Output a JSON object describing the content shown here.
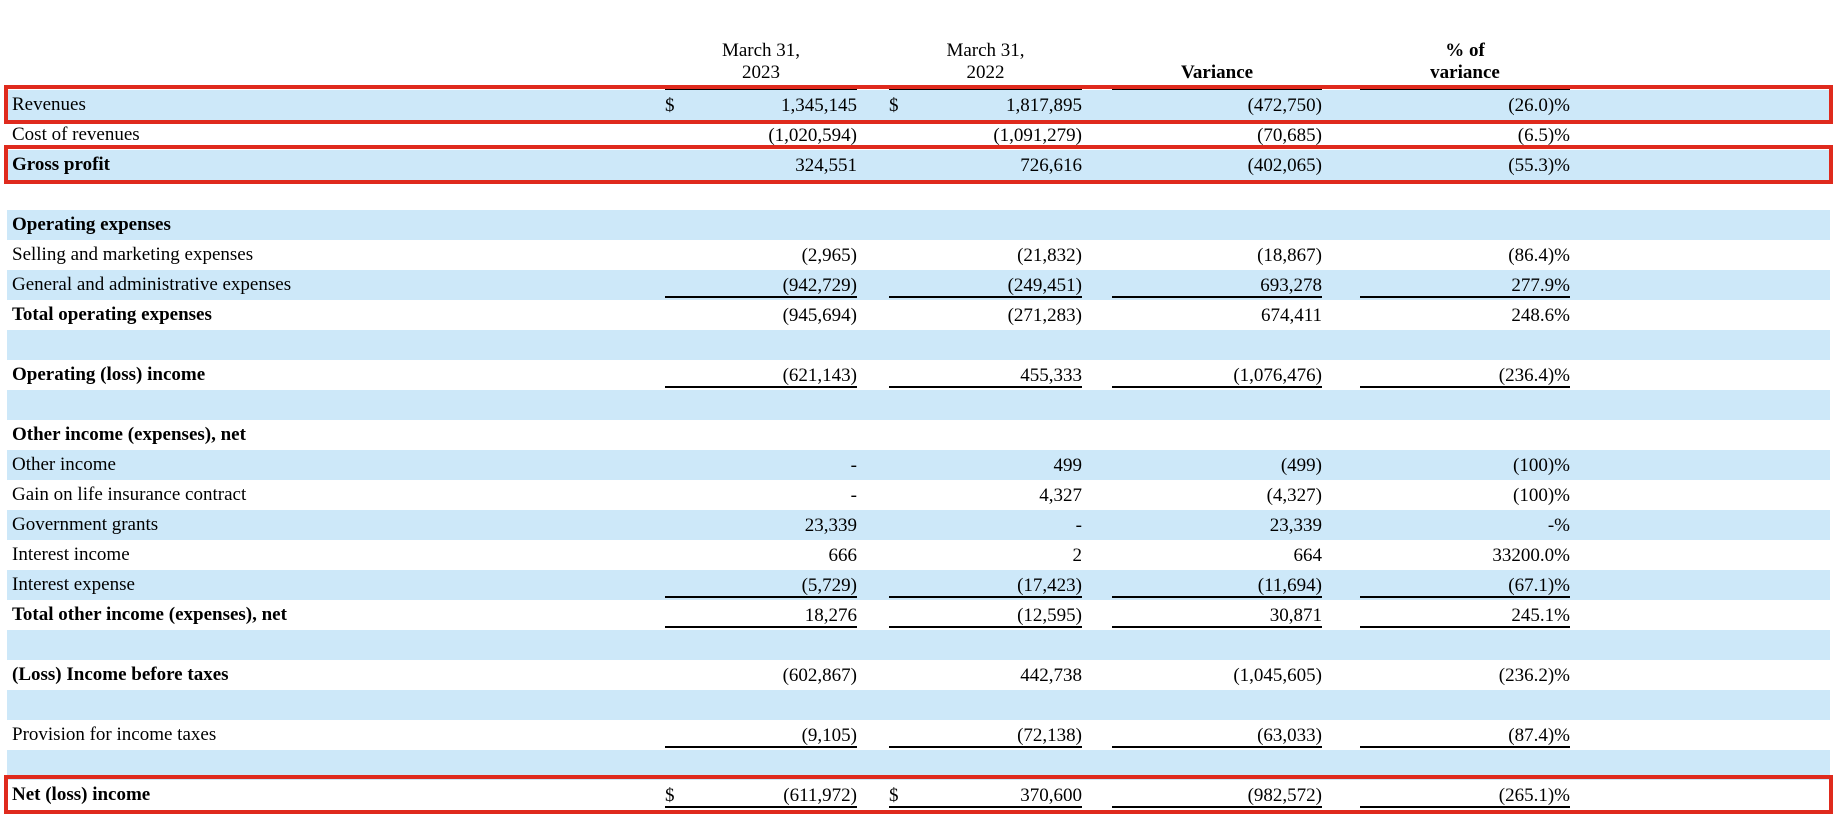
{
  "document": {
    "type": "comparative income statement",
    "periods": [
      "March 31, 2023",
      "March 31, 2022"
    ]
  },
  "colors": {
    "row_highlight_blue": "#cde8f9",
    "annotation_box_red": "#df2a1d",
    "rule_black": "#000000"
  },
  "header": {
    "cols": [
      {
        "line1": "March 31,",
        "line2": "2023"
      },
      {
        "line1": "March 31,",
        "line2": "2022"
      },
      {
        "line1": "Variance",
        "line2": ""
      },
      {
        "line1": "% of",
        "line2": "variance"
      }
    ]
  },
  "table": {
    "rows": [
      {
        "label": "Revenues",
        "bg": "blue",
        "bold": false,
        "highlight": true,
        "underline": "none",
        "d1": "$",
        "v1": "1,345,145",
        "d2": "$",
        "v2": "1,817,895",
        "variance": "(472,750)",
        "pct": "(26.0)%"
      },
      {
        "label": "Cost of revenues",
        "bg": "white",
        "bold": false,
        "highlight": false,
        "underline": "single",
        "d1": "",
        "v1": "(1,020,594)",
        "d2": "",
        "v2": "(1,091,279)",
        "variance": "(70,685)",
        "pct": "(6.5)%"
      },
      {
        "label": "Gross profit",
        "bg": "blue",
        "bold": true,
        "highlight": true,
        "underline": "none",
        "d1": "",
        "v1": "324,551",
        "d2": "",
        "v2": "726,616",
        "variance": "(402,065)",
        "pct": "(55.3)%"
      },
      {
        "spacer": true,
        "bg": "white"
      },
      {
        "label": "Operating expenses",
        "bg": "blue",
        "bold": true,
        "highlight": false,
        "underline": "none",
        "d1": "",
        "v1": "",
        "d2": "",
        "v2": "",
        "variance": "",
        "pct": ""
      },
      {
        "label": "Selling and marketing expenses",
        "bg": "white",
        "bold": false,
        "highlight": false,
        "underline": "none",
        "d1": "",
        "v1": "(2,965)",
        "d2": "",
        "v2": "(21,832)",
        "variance": "(18,867)",
        "pct": "(86.4)%"
      },
      {
        "label": "General and administrative expenses",
        "bg": "blue",
        "bold": false,
        "highlight": false,
        "underline": "single",
        "d1": "",
        "v1": "(942,729)",
        "d2": "",
        "v2": "(249,451)",
        "variance": "693,278",
        "pct": "277.9%"
      },
      {
        "label": "Total operating expenses",
        "bg": "white",
        "bold": true,
        "highlight": false,
        "underline": "none",
        "d1": "",
        "v1": "(945,694)",
        "d2": "",
        "v2": "(271,283)",
        "variance": "674,411",
        "pct": "248.6%"
      },
      {
        "spacer": true,
        "bg": "blue"
      },
      {
        "label": "Operating (loss) income",
        "bg": "white",
        "bold": true,
        "highlight": false,
        "underline": "single",
        "d1": "",
        "v1": "(621,143)",
        "d2": "",
        "v2": "455,333",
        "variance": "(1,076,476)",
        "pct": "(236.4)%"
      },
      {
        "spacer": true,
        "bg": "blue"
      },
      {
        "label": "Other income (expenses), net",
        "bg": "white",
        "bold": true,
        "highlight": false,
        "underline": "none",
        "d1": "",
        "v1": "",
        "d2": "",
        "v2": "",
        "variance": "",
        "pct": ""
      },
      {
        "label": "Other income",
        "bg": "blue",
        "bold": false,
        "highlight": false,
        "underline": "none",
        "d1": "",
        "v1": "-",
        "d2": "",
        "v2": "499",
        "variance": "(499)",
        "pct": "(100)%"
      },
      {
        "label": "Gain on life insurance contract",
        "bg": "white",
        "bold": false,
        "highlight": false,
        "underline": "none",
        "d1": "",
        "v1": "-",
        "d2": "",
        "v2": "4,327",
        "variance": "(4,327)",
        "pct": "(100)%"
      },
      {
        "label": "Government grants",
        "bg": "blue",
        "bold": false,
        "highlight": false,
        "underline": "none",
        "d1": "",
        "v1": "23,339",
        "d2": "",
        "v2": "-",
        "variance": "23,339",
        "pct": "-%"
      },
      {
        "label": "Interest income",
        "bg": "white",
        "bold": false,
        "highlight": false,
        "underline": "none",
        "d1": "",
        "v1": "666",
        "d2": "",
        "v2": "2",
        "variance": "664",
        "pct": "33200.0%"
      },
      {
        "label": "Interest expense",
        "bg": "blue",
        "bold": false,
        "highlight": false,
        "underline": "single",
        "d1": "",
        "v1": "(5,729)",
        "d2": "",
        "v2": "(17,423)",
        "variance": "(11,694)",
        "pct": "(67.1)%"
      },
      {
        "label": "Total other income (expenses), net",
        "bg": "white",
        "bold": true,
        "highlight": false,
        "underline": "single",
        "d1": "",
        "v1": "18,276",
        "d2": "",
        "v2": "(12,595)",
        "variance": "30,871",
        "pct": "245.1%"
      },
      {
        "spacer": true,
        "bg": "blue"
      },
      {
        "label": "(Loss) Income before taxes",
        "bg": "white",
        "bold": true,
        "highlight": false,
        "underline": "none",
        "d1": "",
        "v1": "(602,867)",
        "d2": "",
        "v2": "442,738",
        "variance": "(1,045,605)",
        "pct": "(236.2)%"
      },
      {
        "spacer": true,
        "bg": "blue"
      },
      {
        "label": "Provision for income taxes",
        "bg": "white",
        "bold": false,
        "highlight": false,
        "underline": "single",
        "d1": "",
        "v1": "(9,105)",
        "d2": "",
        "v2": "(72,138)",
        "variance": "(63,033)",
        "pct": "(87.4)%"
      },
      {
        "spacer": true,
        "bg": "blue"
      },
      {
        "label": "Net (loss) income",
        "bg": "white",
        "bold": true,
        "highlight": true,
        "underline": "double",
        "d1": "$",
        "v1": "(611,972)",
        "d2": "$",
        "v2": "370,600",
        "variance": "(982,572)",
        "pct": "(265.1)%"
      }
    ]
  }
}
